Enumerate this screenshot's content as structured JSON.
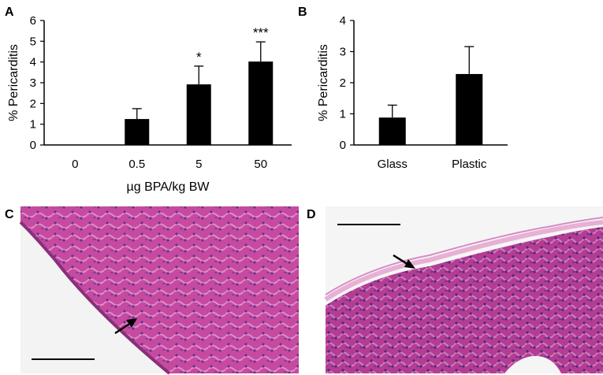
{
  "panel_letters": {
    "a": "A",
    "b": "B",
    "c": "C",
    "d": "D"
  },
  "colors": {
    "bar": "#000000",
    "tissue": "#c0479a",
    "tissue_light": "#e6a9cf",
    "background_photo": "#f2f2f2"
  },
  "chart_data": [
    {
      "type": "bar",
      "panel": "A",
      "ylabel": "% Pericarditis",
      "xlabel": "µg BPA/kg BW",
      "ylim": [
        0,
        6
      ],
      "yticks": [
        "0",
        "1",
        "2",
        "3",
        "4",
        "5",
        "6"
      ],
      "categories": [
        "0",
        "0.5",
        "5",
        "50"
      ],
      "values": [
        0,
        1.25,
        2.92,
        4.02
      ],
      "errors": [
        0,
        0.5,
        0.88,
        0.95
      ],
      "annotations": [
        "",
        "",
        "*",
        "***"
      ],
      "grid": false,
      "legend": "none"
    },
    {
      "type": "bar",
      "panel": "B",
      "ylabel": "% Pericarditis",
      "xlabel": "",
      "ylim": [
        0,
        4
      ],
      "yticks": [
        "0",
        "1",
        "2",
        "3",
        "4"
      ],
      "categories": [
        "Glass",
        "Plastic"
      ],
      "values": [
        0.88,
        2.28
      ],
      "errors": [
        0.4,
        0.88
      ],
      "annotations": [
        "",
        ""
      ],
      "grid": false,
      "legend": "none"
    }
  ],
  "micrographs": [
    {
      "panel": "C",
      "arrow": "arrow-icon",
      "scale_bar": "scale-bar"
    },
    {
      "panel": "D",
      "arrow": "arrow-icon",
      "scale_bar": "scale-bar"
    }
  ]
}
